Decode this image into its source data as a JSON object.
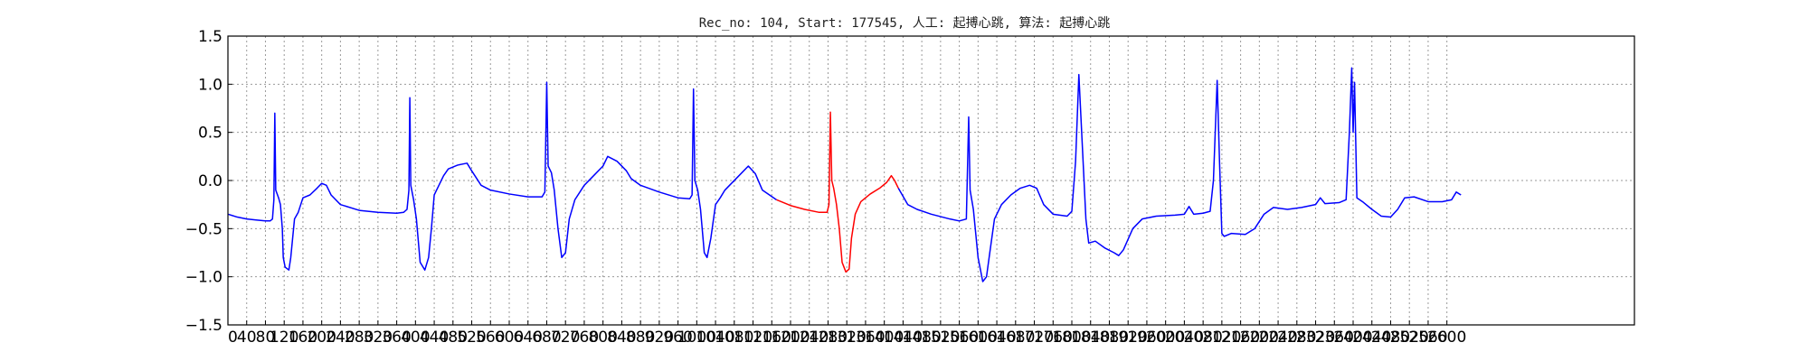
{
  "chart_data": {
    "type": "line",
    "title": "Rec_no: 104, Start: 177545, 人工: 起搏心跳, 算法: 起搏心跳",
    "xlabel": "",
    "ylabel": "",
    "xlim": [
      0,
      3000
    ],
    "ylim": [
      -1.5,
      1.5
    ],
    "grid": true,
    "x_ticks": [
      0,
      40,
      80,
      120,
      160,
      200,
      240,
      280,
      320,
      360,
      400,
      440,
      480,
      520,
      560,
      600,
      640,
      680,
      720,
      760,
      800,
      840,
      880,
      920,
      960,
      1000,
      1040,
      1080,
      1120,
      1160,
      1200,
      1240,
      1280,
      1320,
      1360,
      1400,
      1440,
      1480,
      1520,
      1560,
      1600,
      1640,
      1680,
      1720,
      1760,
      1800,
      1840,
      1880,
      1920,
      1960,
      2000,
      2040,
      2080,
      2120,
      2160,
      2200,
      2240,
      2280,
      2320,
      2360,
      2400,
      2440,
      2480,
      2520,
      2560,
      2600
    ],
    "y_ticks": [
      -1.5,
      -1.0,
      -0.5,
      0.0,
      0.5,
      1.0,
      1.5
    ],
    "y_tick_labels": [
      "−1.5",
      "−1.0",
      "−0.5",
      "0.0",
      "0.5",
      "1.0",
      "1.5"
    ],
    "series": [
      {
        "color": "#0000ff",
        "points": [
          [
            0,
            -0.35
          ],
          [
            20,
            -0.38
          ],
          [
            40,
            -0.4
          ],
          [
            60,
            -0.41
          ],
          [
            80,
            -0.42
          ],
          [
            90,
            -0.42
          ],
          [
            95,
            -0.4
          ],
          [
            98,
            -0.2
          ],
          [
            100,
            0.7
          ],
          [
            102,
            -0.1
          ],
          [
            108,
            -0.18
          ],
          [
            112,
            -0.25
          ],
          [
            116,
            -0.5
          ],
          [
            118,
            -0.8
          ],
          [
            122,
            -0.9
          ],
          [
            130,
            -0.93
          ],
          [
            134,
            -0.8
          ],
          [
            138,
            -0.6
          ],
          [
            142,
            -0.4
          ],
          [
            150,
            -0.33
          ],
          [
            160,
            -0.18
          ],
          [
            175,
            -0.15
          ],
          [
            190,
            -0.08
          ],
          [
            200,
            -0.03
          ],
          [
            210,
            -0.05
          ],
          [
            220,
            -0.15
          ],
          [
            240,
            -0.25
          ],
          [
            280,
            -0.31
          ],
          [
            320,
            -0.33
          ],
          [
            360,
            -0.34
          ],
          [
            375,
            -0.33
          ],
          [
            382,
            -0.3
          ],
          [
            386,
            -0.1
          ],
          [
            388,
            0.86
          ],
          [
            390,
            -0.05
          ],
          [
            396,
            -0.2
          ],
          [
            402,
            -0.4
          ],
          [
            410,
            -0.85
          ],
          [
            420,
            -0.93
          ],
          [
            428,
            -0.8
          ],
          [
            434,
            -0.5
          ],
          [
            440,
            -0.15
          ],
          [
            450,
            -0.05
          ],
          [
            460,
            0.05
          ],
          [
            470,
            0.12
          ],
          [
            490,
            0.16
          ],
          [
            510,
            0.18
          ],
          [
            520,
            0.1
          ],
          [
            540,
            -0.05
          ],
          [
            560,
            -0.1
          ],
          [
            600,
            -0.14
          ],
          [
            640,
            -0.17
          ],
          [
            670,
            -0.17
          ],
          [
            676,
            -0.12
          ],
          [
            680,
            1.02
          ],
          [
            683,
            0.15
          ],
          [
            690,
            0.08
          ],
          [
            696,
            -0.1
          ],
          [
            704,
            -0.5
          ],
          [
            712,
            -0.8
          ],
          [
            720,
            -0.75
          ],
          [
            728,
            -0.4
          ],
          [
            740,
            -0.2
          ],
          [
            760,
            -0.05
          ],
          [
            780,
            0.05
          ],
          [
            800,
            0.15
          ],
          [
            810,
            0.25
          ],
          [
            830,
            0.2
          ],
          [
            850,
            0.1
          ],
          [
            860,
            0.02
          ],
          [
            880,
            -0.05
          ],
          [
            920,
            -0.12
          ],
          [
            960,
            -0.18
          ],
          [
            985,
            -0.19
          ],
          [
            990,
            -0.15
          ],
          [
            993,
            0.95
          ],
          [
            996,
            0.0
          ],
          [
            1002,
            -0.1
          ],
          [
            1008,
            -0.3
          ],
          [
            1016,
            -0.75
          ],
          [
            1022,
            -0.8
          ],
          [
            1030,
            -0.6
          ],
          [
            1040,
            -0.25
          ],
          [
            1050,
            -0.18
          ],
          [
            1060,
            -0.1
          ],
          [
            1070,
            -0.05
          ],
          [
            1090,
            0.05
          ],
          [
            1110,
            0.15
          ],
          [
            1125,
            0.07
          ],
          [
            1140,
            -0.1
          ],
          [
            1170,
            -0.2
          ]
        ]
      },
      {
        "color": "#ff0000",
        "points": [
          [
            1170,
            -0.2
          ],
          [
            1200,
            -0.26
          ],
          [
            1230,
            -0.3
          ],
          [
            1260,
            -0.33
          ],
          [
            1278,
            -0.33
          ],
          [
            1282,
            -0.25
          ],
          [
            1285,
            0.71
          ],
          [
            1288,
            0.0
          ],
          [
            1292,
            -0.08
          ],
          [
            1298,
            -0.25
          ],
          [
            1304,
            -0.5
          ],
          [
            1310,
            -0.85
          ],
          [
            1318,
            -0.95
          ],
          [
            1325,
            -0.92
          ],
          [
            1330,
            -0.6
          ],
          [
            1338,
            -0.35
          ],
          [
            1350,
            -0.22
          ],
          [
            1370,
            -0.14
          ],
          [
            1390,
            -0.08
          ],
          [
            1405,
            -0.02
          ],
          [
            1415,
            0.05
          ],
          [
            1422,
            0.0
          ],
          [
            1430,
            -0.08
          ]
        ]
      },
      {
        "color": "#0000ff",
        "points": [
          [
            1430,
            -0.08
          ],
          [
            1450,
            -0.25
          ],
          [
            1470,
            -0.3
          ],
          [
            1500,
            -0.35
          ],
          [
            1540,
            -0.4
          ],
          [
            1560,
            -0.42
          ],
          [
            1575,
            -0.4
          ],
          [
            1580,
            0.66
          ],
          [
            1583,
            -0.1
          ],
          [
            1590,
            -0.3
          ],
          [
            1600,
            -0.8
          ],
          [
            1610,
            -1.05
          ],
          [
            1618,
            -1.0
          ],
          [
            1625,
            -0.75
          ],
          [
            1635,
            -0.4
          ],
          [
            1650,
            -0.25
          ],
          [
            1670,
            -0.15
          ],
          [
            1690,
            -0.08
          ],
          [
            1710,
            -0.05
          ],
          [
            1725,
            -0.08
          ],
          [
            1740,
            -0.25
          ],
          [
            1760,
            -0.35
          ],
          [
            1790,
            -0.37
          ],
          [
            1800,
            -0.32
          ],
          [
            1808,
            0.2
          ],
          [
            1815,
            1.1
          ],
          [
            1822,
            0.4
          ],
          [
            1830,
            -0.4
          ],
          [
            1836,
            -0.65
          ],
          [
            1850,
            -0.63
          ],
          [
            1870,
            -0.7
          ],
          [
            1890,
            -0.75
          ],
          [
            1900,
            -0.78
          ],
          [
            1910,
            -0.72
          ],
          [
            1930,
            -0.5
          ],
          [
            1950,
            -0.4
          ],
          [
            1980,
            -0.37
          ],
          [
            2020,
            -0.36
          ],
          [
            2040,
            -0.35
          ],
          [
            2050,
            -0.27
          ],
          [
            2060,
            -0.35
          ],
          [
            2080,
            -0.34
          ],
          [
            2095,
            -0.32
          ],
          [
            2102,
            0.0
          ],
          [
            2110,
            1.04
          ],
          [
            2115,
            0.2
          ],
          [
            2120,
            -0.55
          ],
          [
            2125,
            -0.58
          ],
          [
            2140,
            -0.55
          ],
          [
            2170,
            -0.56
          ],
          [
            2190,
            -0.5
          ],
          [
            2210,
            -0.35
          ],
          [
            2230,
            -0.28
          ],
          [
            2260,
            -0.3
          ],
          [
            2290,
            -0.28
          ],
          [
            2320,
            -0.25
          ],
          [
            2330,
            -0.18
          ],
          [
            2340,
            -0.24
          ],
          [
            2370,
            -0.23
          ],
          [
            2385,
            -0.2
          ],
          [
            2392,
            0.5
          ],
          [
            2397,
            1.17
          ],
          [
            2400,
            0.5
          ],
          [
            2403,
            1.02
          ],
          [
            2408,
            -0.18
          ],
          [
            2420,
            -0.22
          ],
          [
            2440,
            -0.3
          ],
          [
            2460,
            -0.37
          ],
          [
            2480,
            -0.38
          ],
          [
            2495,
            -0.3
          ],
          [
            2510,
            -0.18
          ],
          [
            2530,
            -0.17
          ],
          [
            2560,
            -0.22
          ],
          [
            2590,
            -0.22
          ],
          [
            2610,
            -0.2
          ],
          [
            2620,
            -0.12
          ],
          [
            2630,
            -0.15
          ]
        ]
      }
    ]
  }
}
